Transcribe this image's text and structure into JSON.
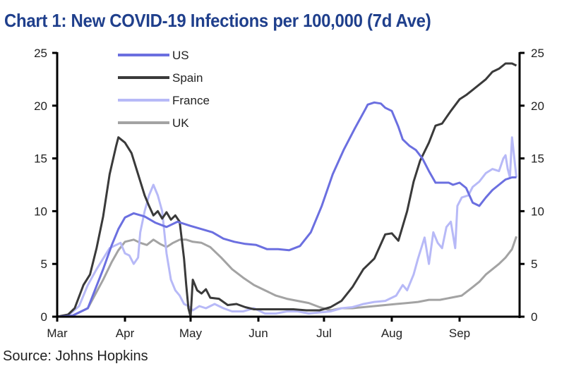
{
  "chart_data": {
    "type": "line",
    "title": "Chart 1: New COVID-19 Infections per 100,000 (7d Ave)",
    "source": "Source: Johns Hopkins",
    "xlabel": "",
    "ylabel": "",
    "ylim": [
      0,
      25
    ],
    "y_ticks": [
      "0",
      "5",
      "10",
      "15",
      "20",
      "25"
    ],
    "y_ticks_right": [
      "0",
      "5",
      "10",
      "15",
      "20",
      "25"
    ],
    "x_tick_labels": [
      "Mar",
      "Apr",
      "May",
      "Jun",
      "Jul",
      "Aug",
      "Sep"
    ],
    "x_tick_days": [
      0,
      31,
      61,
      92,
      122,
      153,
      184
    ],
    "x_range_days": [
      0,
      212
    ],
    "x_unit": "days since Mar 1",
    "legend_position": "top-left",
    "series": [
      {
        "name": "US",
        "color": "#6b6fe0",
        "width": 3,
        "x": [
          0,
          7,
          14,
          21,
          25,
          28,
          31,
          35,
          40,
          45,
          50,
          55,
          61,
          66,
          71,
          76,
          81,
          86,
          91,
          96,
          101,
          106,
          111,
          116,
          121,
          126,
          131,
          136,
          141,
          142,
          145,
          148,
          150,
          153,
          156,
          158,
          161,
          164,
          167,
          170,
          173,
          176,
          179,
          181,
          184,
          187,
          190,
          193,
          196,
          199,
          202,
          205,
          208,
          210
        ],
        "y": [
          0,
          0.1,
          0.8,
          4.5,
          6.8,
          8.3,
          9.4,
          9.8,
          9.5,
          8.9,
          8.5,
          9.0,
          8.6,
          8.3,
          8.0,
          7.4,
          7.1,
          6.9,
          6.8,
          6.4,
          6.4,
          6.3,
          6.7,
          8.0,
          10.5,
          13.5,
          15.8,
          17.8,
          19.7,
          20.1,
          20.3,
          20.2,
          19.8,
          19.5,
          18.0,
          16.8,
          16.2,
          15.8,
          15.0,
          13.8,
          12.7,
          12.7,
          12.7,
          12.5,
          12.7,
          12.2,
          10.8,
          10.5,
          11.3,
          12.0,
          12.5,
          13.0,
          13.2,
          13.2
        ]
      },
      {
        "name": "Spain",
        "color": "#3a3a3a",
        "width": 3,
        "x": [
          0,
          5,
          8,
          12,
          15,
          18,
          21,
          24,
          27,
          28,
          31,
          34,
          37,
          40,
          42,
          44,
          46,
          48,
          50,
          52,
          54,
          56,
          58,
          59,
          60,
          61,
          62,
          64,
          66,
          68,
          70,
          74,
          78,
          82,
          86,
          90,
          94,
          98,
          102,
          108,
          114,
          120,
          125,
          130,
          135,
          140,
          145,
          150,
          153,
          156,
          160,
          163,
          166,
          170,
          173,
          176,
          180,
          184,
          187,
          190,
          193,
          196,
          199,
          202,
          205,
          208,
          210
        ],
        "y": [
          0,
          0.2,
          0.8,
          3.0,
          4.0,
          6.5,
          9.5,
          13.5,
          16.2,
          17.0,
          16.5,
          15.5,
          13.5,
          11.5,
          10.5,
          9.6,
          10.0,
          9.3,
          9.9,
          9.2,
          9.6,
          9.0,
          5.5,
          3.0,
          0.8,
          0,
          3.5,
          2.5,
          2.2,
          2.6,
          1.8,
          1.7,
          1.1,
          1.2,
          0.9,
          0.7,
          0.7,
          0.7,
          0.7,
          0.7,
          0.6,
          0.6,
          0.9,
          1.5,
          2.8,
          4.5,
          5.5,
          7.8,
          7.9,
          7.2,
          10.0,
          12.8,
          14.8,
          16.5,
          18.1,
          18.3,
          19.5,
          20.6,
          21.0,
          21.5,
          22.0,
          22.5,
          23.2,
          23.5,
          24.0,
          24.0,
          23.8
        ]
      },
      {
        "name": "France",
        "color": "#b7b9f7",
        "width": 3,
        "x": [
          0,
          5,
          10,
          14,
          18,
          21,
          24,
          27,
          29,
          31,
          33,
          35,
          37,
          38,
          40,
          42,
          44,
          46,
          48,
          50,
          52,
          54,
          56,
          58,
          60,
          62,
          65,
          68,
          72,
          76,
          80,
          85,
          90,
          95,
          100,
          105,
          110,
          115,
          120,
          125,
          130,
          135,
          140,
          145,
          150,
          155,
          158,
          160,
          163,
          165,
          168,
          170,
          172,
          174,
          176,
          178,
          180,
          182,
          183,
          185,
          188,
          190,
          193,
          196,
          199,
          202,
          204,
          205,
          206,
          207,
          208,
          210
        ],
        "y": [
          0,
          0.1,
          1.0,
          3.0,
          4.5,
          5.5,
          6.5,
          6.8,
          7.0,
          6.0,
          5.8,
          5.0,
          5.6,
          8.0,
          10.0,
          11.5,
          12.5,
          11.5,
          10.0,
          6.0,
          3.5,
          2.5,
          2.0,
          1.2,
          1.0,
          0.6,
          1.0,
          0.8,
          1.2,
          0.8,
          0.5,
          0.5,
          0.8,
          0.3,
          0.3,
          0.5,
          0.5,
          0.3,
          0.4,
          0.5,
          0.8,
          0.9,
          1.2,
          1.4,
          1.5,
          2.0,
          3.0,
          2.5,
          4.0,
          5.5,
          7.5,
          5.0,
          8.0,
          7.0,
          6.5,
          8.5,
          9.0,
          6.5,
          10.5,
          11.3,
          11.5,
          12.3,
          12.8,
          13.6,
          14.0,
          13.8,
          15.0,
          15.3,
          14.0,
          13.2,
          17.0,
          13.2
        ]
      },
      {
        "name": "UK",
        "color": "#a3a3a3",
        "width": 3,
        "x": [
          0,
          7,
          14,
          21,
          25,
          28,
          31,
          35,
          38,
          41,
          44,
          47,
          50,
          53,
          56,
          59,
          62,
          66,
          70,
          75,
          80,
          85,
          90,
          95,
          100,
          105,
          110,
          115,
          120,
          125,
          130,
          135,
          140,
          145,
          150,
          155,
          160,
          165,
          170,
          175,
          180,
          185,
          190,
          193,
          196,
          199,
          202,
          205,
          208,
          210
        ],
        "y": [
          0,
          0.1,
          0.8,
          3.5,
          5.2,
          6.3,
          7.1,
          7.3,
          7.0,
          6.8,
          7.3,
          6.9,
          6.6,
          7.0,
          7.3,
          7.3,
          7.1,
          7.0,
          6.6,
          5.6,
          4.5,
          3.7,
          3.0,
          2.5,
          2.0,
          1.7,
          1.5,
          1.3,
          0.9,
          0.6,
          0.8,
          0.8,
          0.9,
          1.0,
          1.1,
          1.2,
          1.3,
          1.4,
          1.6,
          1.6,
          1.8,
          2.0,
          2.8,
          3.3,
          4.0,
          4.5,
          5.0,
          5.6,
          6.4,
          7.6
        ]
      }
    ]
  }
}
